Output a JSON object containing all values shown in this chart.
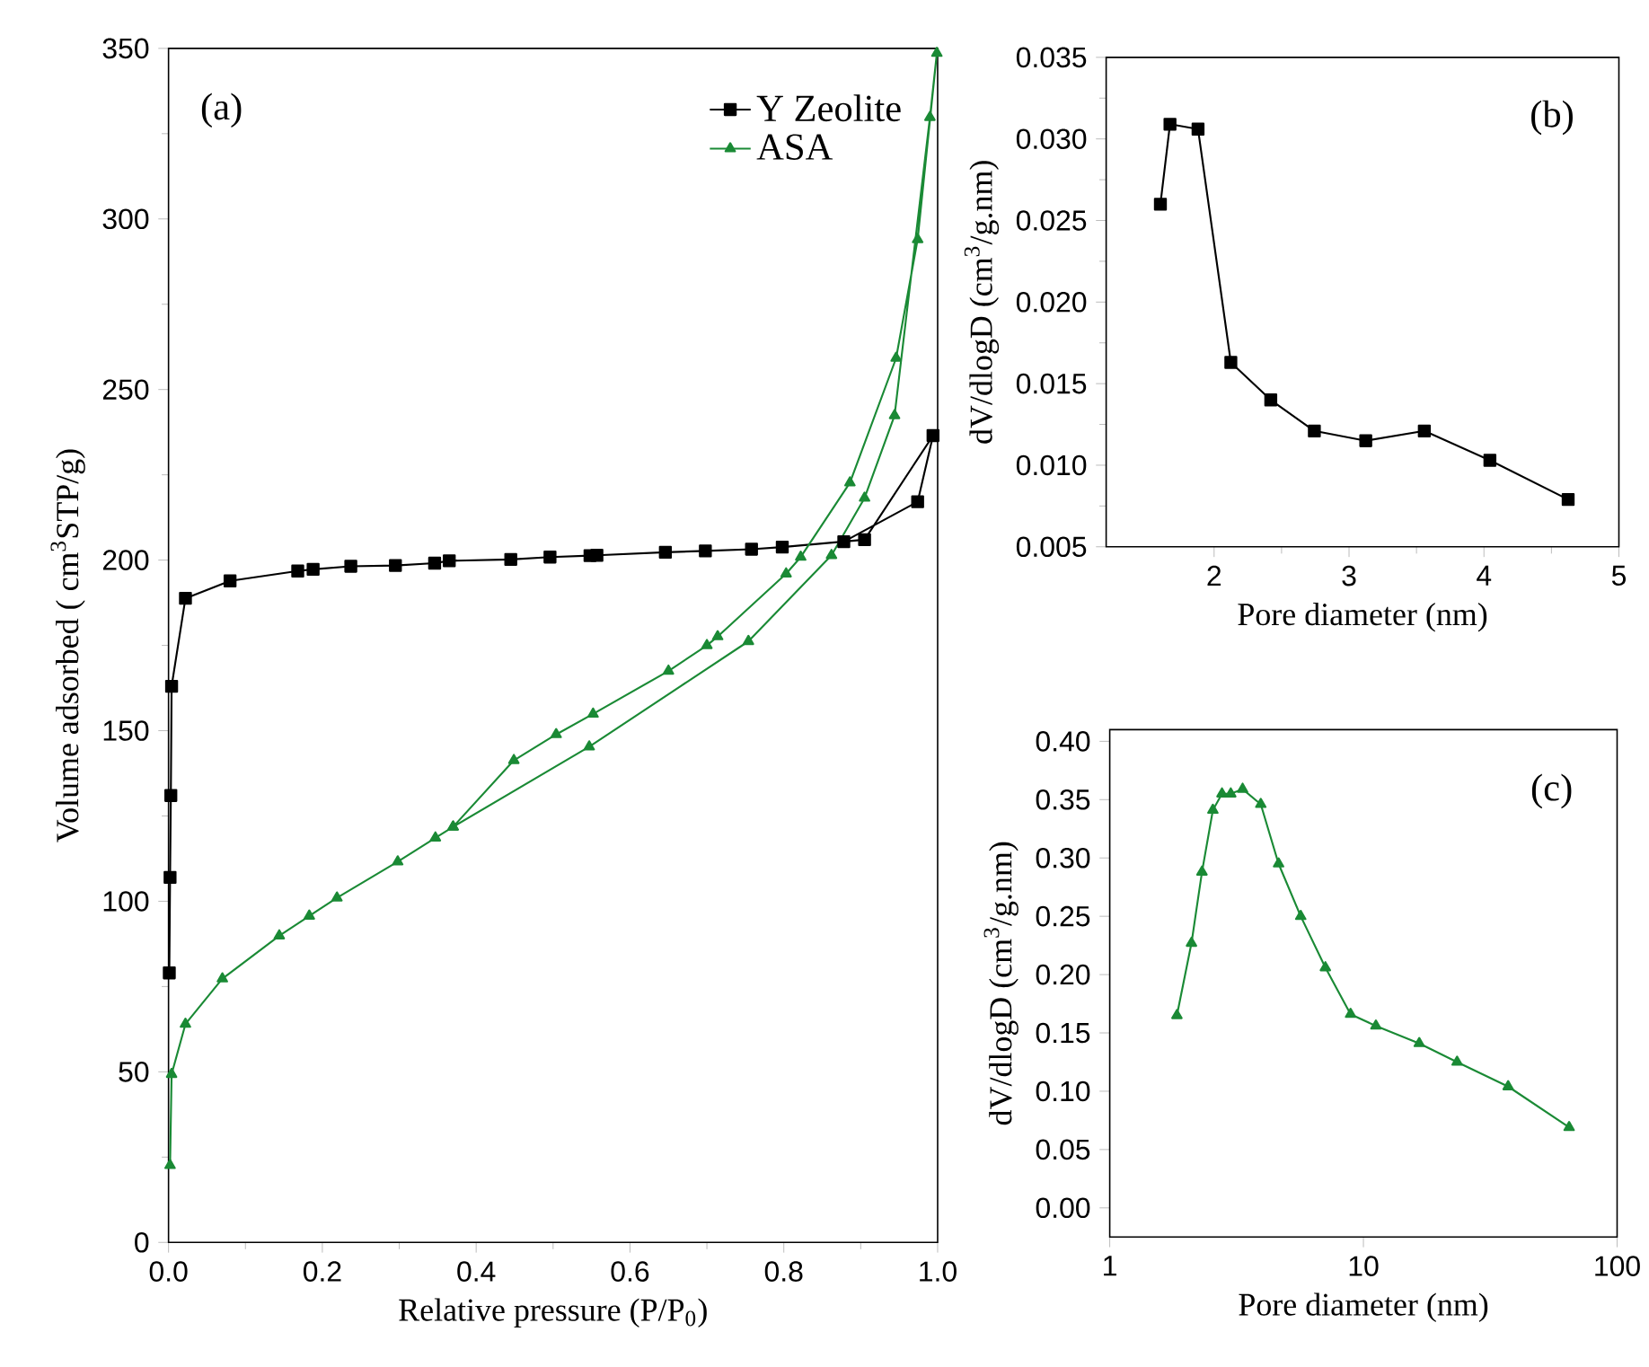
{
  "chart_data": [
    {
      "type": "line",
      "xlabel": "Relative pressure (P/P$_{0}$)",
      "ylabel": "Volume adsorbed ( cm$^{3}$STP/g)",
      "annotations": [
        "(a)"
      ],
      "xlim": [
        0,
        1
      ],
      "ylim": [
        0,
        350
      ],
      "xticks": [
        {
          "value": 0,
          "label": "0.0"
        },
        {
          "value": 0.2,
          "label": "0.2"
        },
        {
          "value": 0.4,
          "label": "0.4"
        },
        {
          "value": 0.6,
          "label": "0.6"
        },
        {
          "value": 0.8,
          "label": "0.8"
        },
        {
          "value": 1,
          "label": "1.0"
        }
      ],
      "yticks": [
        0,
        50,
        100,
        150,
        200,
        250,
        300,
        350
      ],
      "legend": "top right",
      "line_style": "solid",
      "series": [
        {
          "name": "Y Zeolite",
          "color": "#000000",
          "marker": "square",
          "x": [
            0.001,
            0.002,
            0.003,
            0.004,
            0.022,
            0.08,
            0.168,
            0.188,
            0.237,
            0.295,
            0.346,
            0.365,
            0.445,
            0.496,
            0.548,
            0.557,
            0.646,
            0.698,
            0.758,
            0.798,
            0.905,
            0.994,
            0.974,
            0.878
          ],
          "values": [
            79,
            107,
            131,
            163,
            188.8,
            193.9,
            196.8,
            197.3,
            198.2,
            198.4,
            199.1,
            199.8,
            200.2,
            200.9,
            201.3,
            201.4,
            202.3,
            202.7,
            203.2,
            203.8,
            206,
            236.5,
            217.1,
            205.4
          ]
        },
        {
          "name": "ASA",
          "color": "#1a8a35",
          "marker": "triangle",
          "x": [
            0.002,
            0.004,
            0.022,
            0.07,
            0.144,
            0.183,
            0.219,
            0.298,
            0.347,
            0.37,
            0.547,
            0.754,
            0.862,
            0.905,
            0.944,
            0.99,
            0.999,
            0.974,
            0.946,
            0.886,
            0.822,
            0.803,
            0.714,
            0.7,
            0.65,
            0.552,
            0.504,
            0.449,
            0.37
          ],
          "values": [
            22.6,
            49.3,
            64,
            77.3,
            89.9,
            95.7,
            101,
            111.6,
            118.6,
            121.8,
            145.3,
            176.2,
            201.4,
            218.2,
            242.4,
            329.8,
            348.6,
            294,
            259.2,
            222.7,
            200.9,
            196,
            177.6,
            175,
            167.5,
            154.9,
            148.9,
            141.3,
            121.8
          ]
        }
      ]
    },
    {
      "type": "line",
      "xlabel": "Pore diameter (nm)",
      "ylabel": "dV/dlogD (cm$^{3}$/g.nm)",
      "annotations": [
        "(b)"
      ],
      "xlim": [
        1.2,
        5
      ],
      "ylim": [
        0.005,
        0.035
      ],
      "xticks": [
        2,
        3,
        4,
        5
      ],
      "yticks": [
        {
          "value": 0.005,
          "label": "0.005"
        },
        {
          "value": 0.01,
          "label": "0.010"
        },
        {
          "value": 0.015,
          "label": "0.015"
        },
        {
          "value": 0.02,
          "label": "0.020"
        },
        {
          "value": 0.025,
          "label": "0.025"
        },
        {
          "value": 0.03,
          "label": "0.030"
        },
        {
          "value": 0.035,
          "label": "0.035"
        }
      ],
      "marker": "square",
      "line_style": "solid",
      "series": [
        {
          "color": "#000000",
          "x": [
            1.602,
            1.673,
            1.881,
            2.124,
            2.42,
            2.743,
            3.124,
            3.558,
            4.044,
            4.624
          ],
          "values": [
            0.026,
            0.0309,
            0.0306,
            0.0163,
            0.014,
            0.0121,
            0.0115,
            0.0121,
            0.0103,
            0.0079
          ]
        }
      ]
    },
    {
      "type": "line",
      "xlabel": "Pore diameter (nm)",
      "ylabel": "dV/dlogD (cm$^{3}$/g.nm)",
      "annotations": [
        "(c)"
      ],
      "log": "x",
      "xlim": [
        1,
        100
      ],
      "ylim": [
        -0.025,
        0.41
      ],
      "xticks": [
        1,
        10,
        100
      ],
      "yticks": [
        {
          "value": 0,
          "label": "0.00"
        },
        {
          "value": 0.05,
          "label": "0.05"
        },
        {
          "value": 0.1,
          "label": "0.10"
        },
        {
          "value": 0.15,
          "label": "0.15"
        },
        {
          "value": 0.2,
          "label": "0.20"
        },
        {
          "value": 0.25,
          "label": "0.25"
        },
        {
          "value": 0.3,
          "label": "0.30"
        },
        {
          "value": 0.35,
          "label": "0.35"
        },
        {
          "value": 0.4,
          "label": "0.40"
        }
      ],
      "marker": "triangle",
      "line_style": "solid",
      "series": [
        {
          "color": "#1a8a35",
          "x": [
            1.84,
            2.1,
            2.31,
            2.55,
            2.77,
            3.0,
            3.34,
            3.94,
            4.63,
            5.66,
            7.08,
            8.9,
            11.2,
            16.6,
            23.4,
            37.2,
            64.7
          ],
          "values": [
            0.165,
            0.227,
            0.288,
            0.341,
            0.355,
            0.355,
            0.359,
            0.346,
            0.295,
            0.25,
            0.206,
            0.166,
            0.156,
            0.141,
            0.125,
            0.104,
            0.069
          ]
        }
      ]
    }
  ]
}
